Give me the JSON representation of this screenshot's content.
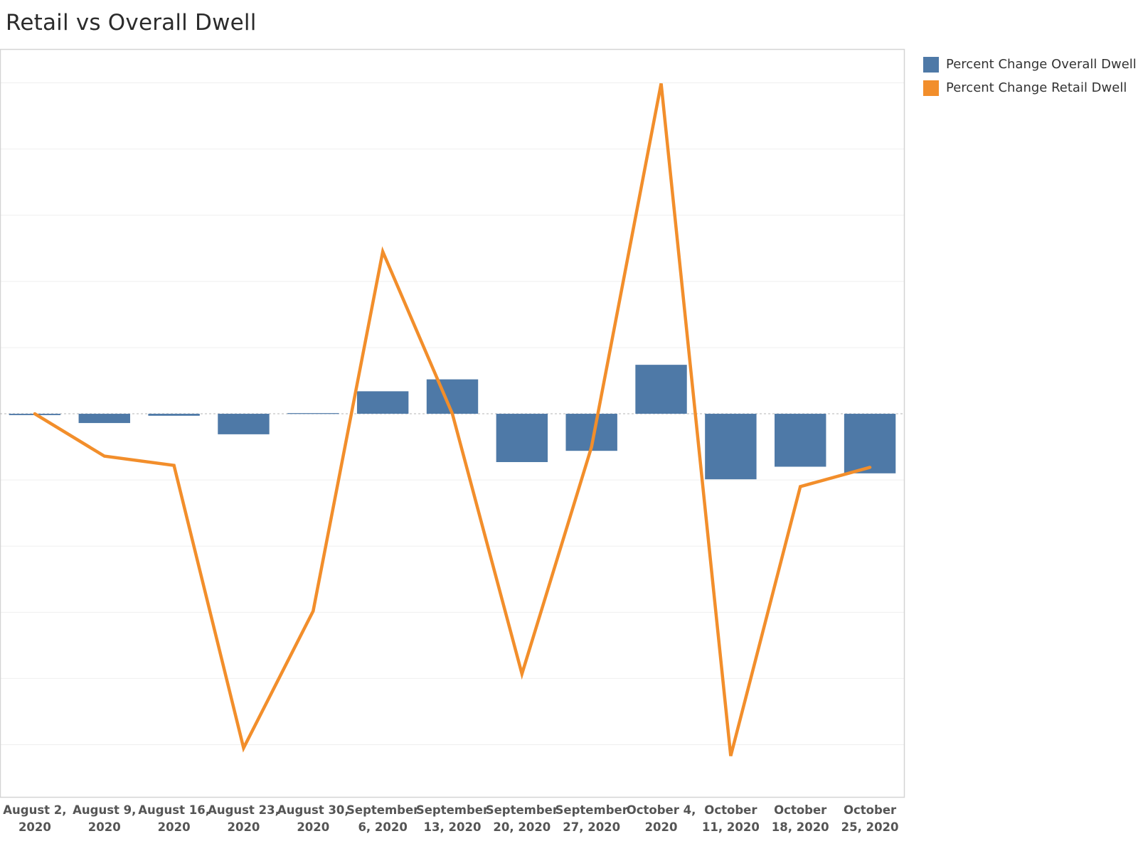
{
  "chart_data": {
    "type": "bar",
    "title": "Retail vs Overall Dwell",
    "xlabel": "",
    "ylabel": "",
    "grid": true,
    "legend_position": "top-right",
    "categories": [
      "August 2, 2020",
      "August 9, 2020",
      "August 16, 2020",
      "August 23, 2020",
      "August 30, 2020",
      "September 6, 2020",
      "September 13, 2020",
      "September 20, 2020",
      "September 27, 2020",
      "October 4, 2020",
      "October 11, 2020",
      "October 18, 2020",
      "October 25, 2020"
    ],
    "tick_labels": [
      [
        "August 2,",
        "2020"
      ],
      [
        "August 9,",
        "2020"
      ],
      [
        "August 16,",
        "2020"
      ],
      [
        "August 23,",
        "2020"
      ],
      [
        "August 30,",
        "2020"
      ],
      [
        "September",
        "6, 2020"
      ],
      [
        "September",
        "13, 2020"
      ],
      [
        "September",
        "20, 2020"
      ],
      [
        "September",
        "27, 2020"
      ],
      [
        "October 4,",
        "2020"
      ],
      [
        "October",
        "11, 2020"
      ],
      [
        "October",
        "18, 2020"
      ],
      [
        "October",
        "25, 2020"
      ]
    ],
    "ylim": [
      -5.8,
      5.5
    ],
    "series": [
      {
        "name": "Percent Change Overall Dwell",
        "type": "bar",
        "color": "#4e79a7",
        "values": [
          -0.02,
          -0.14,
          -0.03,
          -0.31,
          0.01,
          0.34,
          0.52,
          -0.73,
          -0.56,
          0.74,
          -0.99,
          -0.8,
          -0.9
        ]
      },
      {
        "name": "Percent Change Retail Dwell",
        "type": "line",
        "color": "#f28e2b",
        "values": [
          0.0,
          -0.64,
          -0.78,
          -5.05,
          -2.98,
          2.45,
          0.0,
          -3.93,
          -0.5,
          4.99,
          -5.17,
          -1.1,
          -0.81
        ]
      }
    ]
  }
}
